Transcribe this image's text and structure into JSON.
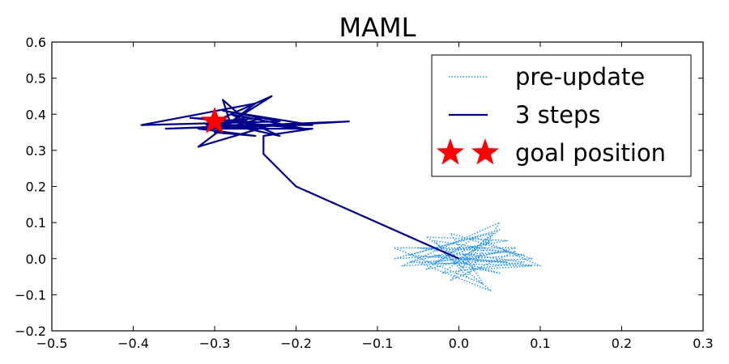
{
  "chart_data": {
    "type": "line",
    "title": "MAML",
    "xlabel": "",
    "ylabel": "",
    "xlim": [
      -0.5,
      0.3
    ],
    "ylim": [
      -0.2,
      0.6
    ],
    "x_ticks": [
      "−0.5",
      "−0.4",
      "−0.3",
      "−0.2",
      "−0.1",
      "0.0",
      "0.1",
      "0.2",
      "0.3"
    ],
    "y_ticks": [
      "−0.2",
      "−0.1",
      "0.0",
      "0.1",
      "0.2",
      "0.3",
      "0.4",
      "0.5",
      "0.6"
    ],
    "grid": false,
    "legend_position": "top-right",
    "series": [
      {
        "name": "pre-update",
        "style": "dotted",
        "color": "#1e90ff",
        "points": [
          [
            0.0,
            0.0
          ],
          [
            0.04,
            0.05
          ],
          [
            -0.03,
            -0.01
          ],
          [
            0.06,
            0.02
          ],
          [
            -0.05,
            0.03
          ],
          [
            0.08,
            -0.01
          ],
          [
            -0.02,
            -0.04
          ],
          [
            0.05,
            0.08
          ],
          [
            -0.06,
            0.01
          ],
          [
            0.1,
            -0.02
          ],
          [
            0.02,
            0.06
          ],
          [
            -0.04,
            -0.03
          ],
          [
            0.07,
            0.03
          ],
          [
            -0.08,
            0.03
          ],
          [
            0.03,
            -0.07
          ],
          [
            -0.01,
            0.07
          ],
          [
            0.09,
            0.0
          ],
          [
            -0.07,
            -0.02
          ],
          [
            0.05,
            0.1
          ],
          [
            0.01,
            -0.05
          ],
          [
            -0.03,
            0.05
          ],
          [
            0.08,
            0.01
          ],
          [
            -0.05,
            -0.01
          ],
          [
            0.04,
            -0.09
          ],
          [
            -0.02,
            0.02
          ],
          [
            0.06,
            0.05
          ],
          [
            -0.04,
            0.06
          ],
          [
            0.02,
            -0.03
          ],
          [
            0.09,
            -0.02
          ],
          [
            -0.06,
            -0.01
          ],
          [
            0.03,
            0.04
          ],
          [
            -0.01,
            -0.06
          ],
          [
            0.07,
            0.02
          ],
          [
            -0.08,
            0.0
          ],
          [
            0.04,
            0.07
          ],
          [
            0.0,
            -0.02
          ],
          [
            0.05,
            -0.04
          ],
          [
            -0.03,
            0.01
          ],
          [
            0.06,
            -0.01
          ],
          [
            0.0,
            0.0
          ]
        ]
      },
      {
        "name": "3 steps",
        "style": "solid",
        "color": "#00008b",
        "points": [
          [
            0.0,
            0.0
          ],
          [
            -0.2,
            0.2
          ],
          [
            -0.24,
            0.29
          ],
          [
            -0.24,
            0.34
          ],
          [
            -0.18,
            0.36
          ],
          [
            -0.32,
            0.36
          ],
          [
            -0.25,
            0.34
          ],
          [
            -0.3,
            0.35
          ],
          [
            -0.23,
            0.45
          ],
          [
            -0.31,
            0.37
          ],
          [
            -0.18,
            0.37
          ],
          [
            -0.29,
            0.41
          ],
          [
            -0.22,
            0.38
          ],
          [
            -0.39,
            0.37
          ],
          [
            -0.25,
            0.43
          ],
          [
            -0.32,
            0.31
          ],
          [
            -0.23,
            0.37
          ],
          [
            -0.36,
            0.36
          ],
          [
            -0.135,
            0.38
          ],
          [
            -0.29,
            0.36
          ],
          [
            -0.24,
            0.39
          ],
          [
            -0.3,
            0.38
          ],
          [
            -0.22,
            0.34
          ],
          [
            -0.28,
            0.4
          ],
          [
            -0.19,
            0.36
          ],
          [
            -0.33,
            0.39
          ],
          [
            -0.26,
            0.38
          ],
          [
            -0.29,
            0.44
          ],
          [
            -0.28,
            0.37
          ],
          [
            -0.25,
            0.36
          ]
        ]
      }
    ],
    "markers": [
      {
        "name": "goal position",
        "shape": "star",
        "color": "#ff0000",
        "x": -0.3,
        "y": 0.38
      }
    ],
    "legend": [
      {
        "label": "pre-update",
        "kind": "dotted-line",
        "color": "#1e90ff"
      },
      {
        "label": "3 steps",
        "kind": "solid-line",
        "color": "#00008b"
      },
      {
        "label": "goal position",
        "kind": "double-star",
        "color": "#ff0000"
      }
    ]
  }
}
